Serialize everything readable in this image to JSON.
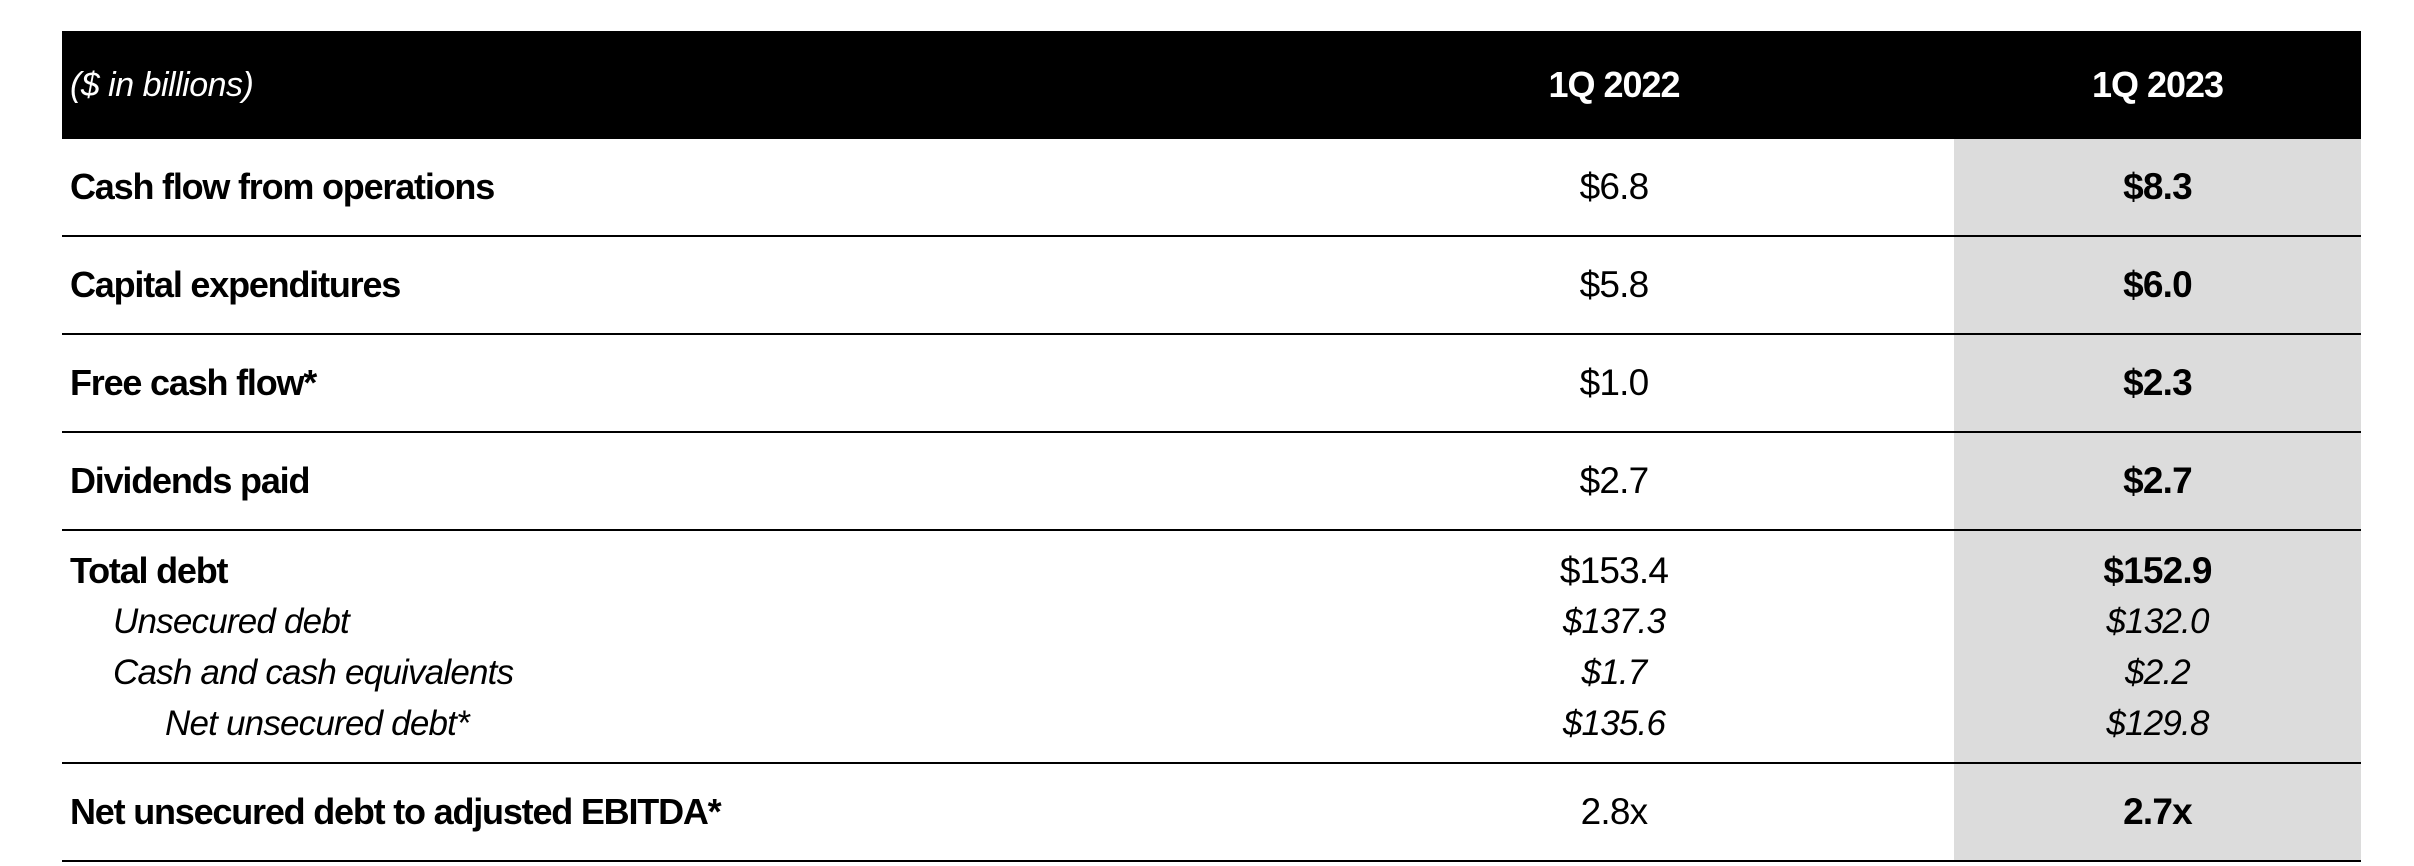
{
  "header": {
    "label": "($ in billions)",
    "col_2022": "1Q 2022",
    "col_2023": "1Q 2023"
  },
  "rows": {
    "cash_flow_ops": {
      "label": "Cash flow from operations",
      "v2022": "$6.8",
      "v2023": "$8.3"
    },
    "capex": {
      "label": "Capital expenditures",
      "v2022": "$5.8",
      "v2023": "$6.0"
    },
    "free_cash_flow": {
      "label": "Free cash flow*",
      "v2022": "$1.0",
      "v2023": "$2.3"
    },
    "dividends": {
      "label": "Dividends paid",
      "v2022": "$2.7",
      "v2023": "$2.7"
    },
    "debt": {
      "total": {
        "label": "Total debt",
        "v2022": "$153.4",
        "v2023": "$152.9"
      },
      "unsecured": {
        "label": "Unsecured debt",
        "v2022": "$137.3",
        "v2023": "$132.0"
      },
      "cash": {
        "label": "Cash and cash equivalents",
        "v2022": "$1.7",
        "v2023": "$2.2"
      },
      "net_unsecured": {
        "label": "Net unsecured debt*",
        "v2022": "$135.6",
        "v2023": "$129.8"
      }
    },
    "leverage": {
      "label": "Net unsecured debt to adjusted EBITDA*",
      "v2022": "2.8x",
      "v2023": "2.7x"
    }
  }
}
